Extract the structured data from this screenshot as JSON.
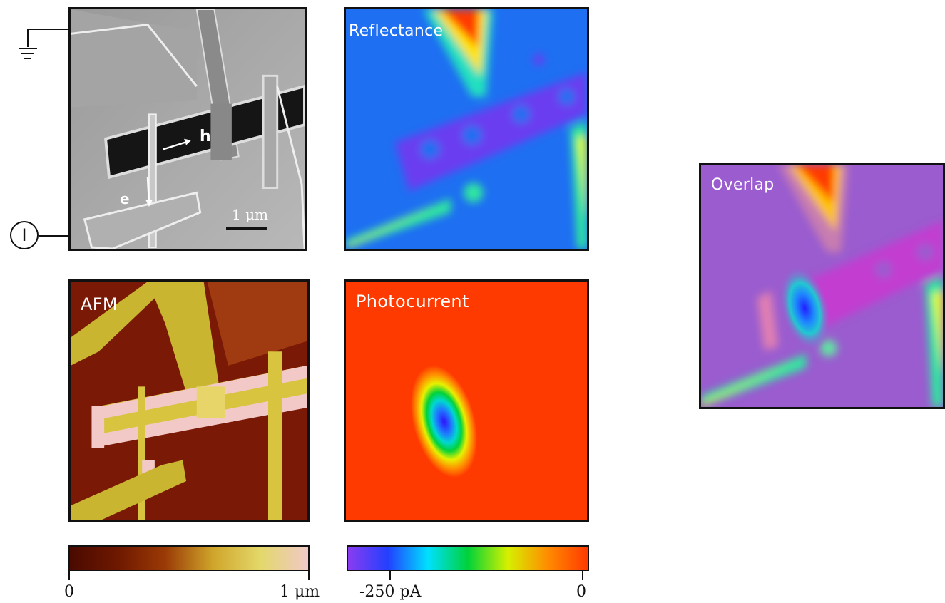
{
  "panels": {
    "sem": {
      "label_h": "h",
      "label_e": "e",
      "scale_bar": "1 μm"
    },
    "reflectance": {
      "label": "Reflectance"
    },
    "afm": {
      "label": "AFM"
    },
    "photocurrent": {
      "label": "Photocurrent"
    },
    "overlap": {
      "label": "Overlap"
    }
  },
  "terminal": {
    "current_symbol": "I"
  },
  "colorbars": {
    "afm": {
      "min_label": "0",
      "max_label": "1 μm",
      "colors": [
        "#4a0a00",
        "#6e1800",
        "#9a3a06",
        "#cfa52a",
        "#e3d86a",
        "#f0c9c7"
      ]
    },
    "photocurrent": {
      "min_label": "-250 pA",
      "max_label": "0",
      "colors": [
        "#8a3cf0",
        "#2340ff",
        "#00e0ff",
        "#00d23a",
        "#d6f000",
        "#ff8c00",
        "#ff3a00"
      ]
    }
  }
}
